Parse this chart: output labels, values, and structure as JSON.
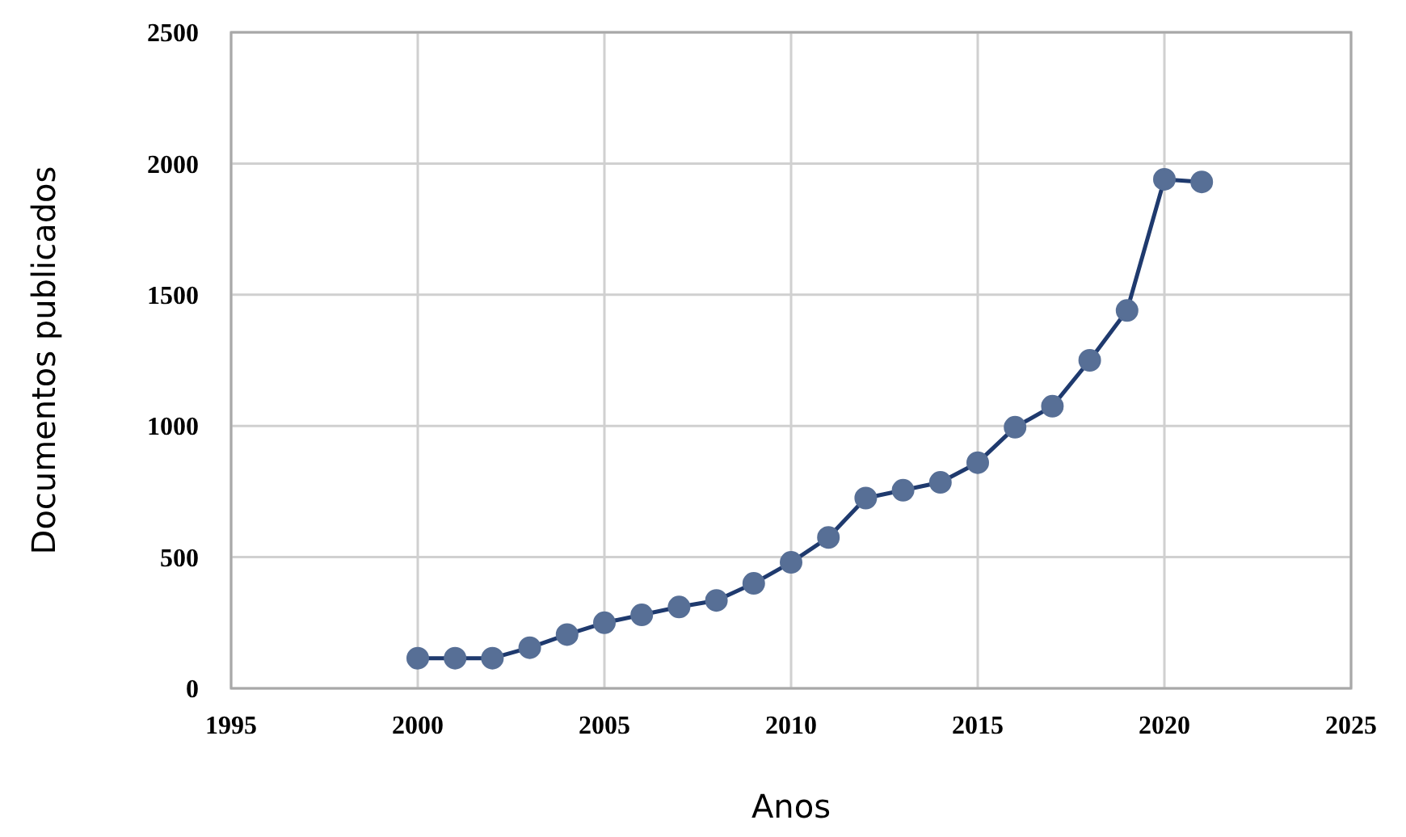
{
  "chart_data": {
    "type": "line",
    "xlabel": "Anos",
    "ylabel": "Documentos publicados",
    "x": [
      2000,
      2001,
      2002,
      2003,
      2004,
      2005,
      2006,
      2007,
      2008,
      2009,
      2010,
      2011,
      2012,
      2013,
      2014,
      2015,
      2016,
      2017,
      2018,
      2019,
      2020,
      2021
    ],
    "series": [
      {
        "color": "#1f3a6e",
        "values": [
          115,
          115,
          115,
          155,
          205,
          250,
          280,
          310,
          335,
          400,
          480,
          575,
          725,
          755,
          785,
          860,
          995,
          1075,
          1250,
          1440,
          1940,
          1930
        ]
      }
    ],
    "xlim": [
      1995,
      2025
    ],
    "xticks": [
      1995,
      2000,
      2005,
      2010,
      2015,
      2020,
      2025
    ],
    "ylim": [
      0,
      2500
    ],
    "yticks": [
      0,
      500,
      1000,
      1500,
      2000,
      2500
    ],
    "grid": true,
    "marker": "circle",
    "line_style": "solid"
  }
}
